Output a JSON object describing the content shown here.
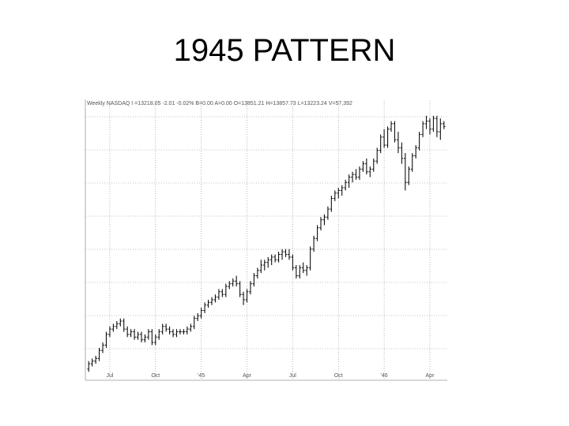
{
  "slide": {
    "title": "1945 PATTERN"
  },
  "chart_data": {
    "type": "ohlc",
    "header": "Weekly NASDAQ I =13218.05 -2.01 -0.02% B=0.00 A=0.00 O=13851.21 H=13857.73 L=13223.24 V=57,392",
    "title": "",
    "xlabel": "",
    "ylabel": "",
    "x_ticks": [
      "Jul",
      "Oct",
      "'45",
      "Apr",
      "Jul",
      "Oct",
      "'46",
      "Apr"
    ],
    "x_tick_weeks": [
      6,
      19,
      32,
      45,
      58,
      71,
      84,
      97
    ],
    "ylim": [
      0,
      100
    ],
    "grid": true,
    "bars": [
      {
        "o": 3,
        "h": 6,
        "l": 2,
        "c": 5
      },
      {
        "o": 5,
        "h": 7,
        "l": 4,
        "c": 6
      },
      {
        "o": 6,
        "h": 8,
        "l": 5,
        "c": 7
      },
      {
        "o": 7,
        "h": 11,
        "l": 6,
        "c": 10
      },
      {
        "o": 10,
        "h": 13,
        "l": 9,
        "c": 12
      },
      {
        "o": 12,
        "h": 17,
        "l": 11,
        "c": 16
      },
      {
        "o": 16,
        "h": 19,
        "l": 15,
        "c": 18
      },
      {
        "o": 18,
        "h": 20,
        "l": 17,
        "c": 19
      },
      {
        "o": 19,
        "h": 21,
        "l": 18,
        "c": 20
      },
      {
        "o": 20,
        "h": 22,
        "l": 19,
        "c": 21
      },
      {
        "o": 21,
        "h": 22,
        "l": 17,
        "c": 18
      },
      {
        "o": 18,
        "h": 19,
        "l": 15,
        "c": 16
      },
      {
        "o": 16,
        "h": 18,
        "l": 15,
        "c": 17
      },
      {
        "o": 17,
        "h": 18,
        "l": 14,
        "c": 15
      },
      {
        "o": 15,
        "h": 17,
        "l": 14,
        "c": 16
      },
      {
        "o": 16,
        "h": 17,
        "l": 13,
        "c": 14
      },
      {
        "o": 14,
        "h": 16,
        "l": 13,
        "c": 15
      },
      {
        "o": 15,
        "h": 18,
        "l": 14,
        "c": 17
      },
      {
        "o": 17,
        "h": 18,
        "l": 12,
        "c": 13
      },
      {
        "o": 13,
        "h": 16,
        "l": 12,
        "c": 15
      },
      {
        "o": 15,
        "h": 18,
        "l": 14,
        "c": 17
      },
      {
        "o": 17,
        "h": 20,
        "l": 16,
        "c": 19
      },
      {
        "o": 19,
        "h": 20,
        "l": 17,
        "c": 18
      },
      {
        "o": 18,
        "h": 19,
        "l": 16,
        "c": 17
      },
      {
        "o": 17,
        "h": 18,
        "l": 15,
        "c": 16
      },
      {
        "o": 16,
        "h": 18,
        "l": 15,
        "c": 17
      },
      {
        "o": 17,
        "h": 18,
        "l": 16,
        "c": 17
      },
      {
        "o": 17,
        "h": 18,
        "l": 16,
        "c": 17
      },
      {
        "o": 17,
        "h": 19,
        "l": 16,
        "c": 18
      },
      {
        "o": 18,
        "h": 20,
        "l": 17,
        "c": 19
      },
      {
        "o": 19,
        "h": 23,
        "l": 18,
        "c": 22
      },
      {
        "o": 22,
        "h": 24,
        "l": 21,
        "c": 23
      },
      {
        "o": 23,
        "h": 26,
        "l": 22,
        "c": 25
      },
      {
        "o": 25,
        "h": 28,
        "l": 24,
        "c": 27
      },
      {
        "o": 27,
        "h": 29,
        "l": 26,
        "c": 28
      },
      {
        "o": 28,
        "h": 30,
        "l": 27,
        "c": 29
      },
      {
        "o": 29,
        "h": 31,
        "l": 28,
        "c": 30
      },
      {
        "o": 30,
        "h": 33,
        "l": 29,
        "c": 32
      },
      {
        "o": 32,
        "h": 33,
        "l": 30,
        "c": 31
      },
      {
        "o": 31,
        "h": 35,
        "l": 30,
        "c": 34
      },
      {
        "o": 34,
        "h": 36,
        "l": 33,
        "c": 35
      },
      {
        "o": 35,
        "h": 37,
        "l": 34,
        "c": 36
      },
      {
        "o": 36,
        "h": 38,
        "l": 34,
        "c": 35
      },
      {
        "o": 35,
        "h": 36,
        "l": 30,
        "c": 31
      },
      {
        "o": 31,
        "h": 32,
        "l": 27,
        "c": 29
      },
      {
        "o": 29,
        "h": 33,
        "l": 28,
        "c": 32
      },
      {
        "o": 32,
        "h": 36,
        "l": 31,
        "c": 35
      },
      {
        "o": 35,
        "h": 39,
        "l": 34,
        "c": 38
      },
      {
        "o": 38,
        "h": 41,
        "l": 37,
        "c": 40
      },
      {
        "o": 40,
        "h": 44,
        "l": 39,
        "c": 42
      },
      {
        "o": 42,
        "h": 44,
        "l": 40,
        "c": 43
      },
      {
        "o": 43,
        "h": 45,
        "l": 41,
        "c": 44
      },
      {
        "o": 44,
        "h": 46,
        "l": 42,
        "c": 45
      },
      {
        "o": 45,
        "h": 46,
        "l": 43,
        "c": 44
      },
      {
        "o": 44,
        "h": 47,
        "l": 43,
        "c": 46
      },
      {
        "o": 46,
        "h": 48,
        "l": 44,
        "c": 47
      },
      {
        "o": 47,
        "h": 48,
        "l": 45,
        "c": 46
      },
      {
        "o": 46,
        "h": 48,
        "l": 44,
        "c": 45
      },
      {
        "o": 45,
        "h": 46,
        "l": 40,
        "c": 41
      },
      {
        "o": 41,
        "h": 42,
        "l": 37,
        "c": 38
      },
      {
        "o": 38,
        "h": 42,
        "l": 37,
        "c": 41
      },
      {
        "o": 41,
        "h": 43,
        "l": 39,
        "c": 40
      },
      {
        "o": 40,
        "h": 42,
        "l": 38,
        "c": 41
      },
      {
        "o": 41,
        "h": 49,
        "l": 40,
        "c": 48
      },
      {
        "o": 48,
        "h": 53,
        "l": 47,
        "c": 52
      },
      {
        "o": 52,
        "h": 57,
        "l": 51,
        "c": 56
      },
      {
        "o": 56,
        "h": 60,
        "l": 55,
        "c": 59
      },
      {
        "o": 59,
        "h": 61,
        "l": 57,
        "c": 60
      },
      {
        "o": 60,
        "h": 64,
        "l": 59,
        "c": 63
      },
      {
        "o": 63,
        "h": 68,
        "l": 62,
        "c": 67
      },
      {
        "o": 67,
        "h": 70,
        "l": 66,
        "c": 69
      },
      {
        "o": 69,
        "h": 71,
        "l": 67,
        "c": 70
      },
      {
        "o": 70,
        "h": 72,
        "l": 68,
        "c": 71
      },
      {
        "o": 71,
        "h": 74,
        "l": 70,
        "c": 73
      },
      {
        "o": 73,
        "h": 76,
        "l": 71,
        "c": 75
      },
      {
        "o": 75,
        "h": 77,
        "l": 73,
        "c": 76
      },
      {
        "o": 76,
        "h": 78,
        "l": 74,
        "c": 75
      },
      {
        "o": 75,
        "h": 79,
        "l": 74,
        "c": 78
      },
      {
        "o": 78,
        "h": 81,
        "l": 77,
        "c": 80
      },
      {
        "o": 80,
        "h": 82,
        "l": 76,
        "c": 77
      },
      {
        "o": 77,
        "h": 79,
        "l": 75,
        "c": 78
      },
      {
        "o": 78,
        "h": 82,
        "l": 77,
        "c": 81
      },
      {
        "o": 81,
        "h": 86,
        "l": 80,
        "c": 85
      },
      {
        "o": 85,
        "h": 91,
        "l": 84,
        "c": 90
      },
      {
        "o": 90,
        "h": 93,
        "l": 86,
        "c": 87
      },
      {
        "o": 87,
        "h": 94,
        "l": 86,
        "c": 93
      },
      {
        "o": 93,
        "h": 96,
        "l": 92,
        "c": 95
      },
      {
        "o": 95,
        "h": 96,
        "l": 88,
        "c": 89
      },
      {
        "o": 89,
        "h": 92,
        "l": 84,
        "c": 86
      },
      {
        "o": 86,
        "h": 88,
        "l": 80,
        "c": 82
      },
      {
        "o": 82,
        "h": 84,
        "l": 70,
        "c": 73
      },
      {
        "o": 73,
        "h": 79,
        "l": 72,
        "c": 78
      },
      {
        "o": 78,
        "h": 84,
        "l": 77,
        "c": 83
      },
      {
        "o": 83,
        "h": 87,
        "l": 82,
        "c": 86
      },
      {
        "o": 86,
        "h": 92,
        "l": 85,
        "c": 91
      },
      {
        "o": 91,
        "h": 96,
        "l": 90,
        "c": 95
      },
      {
        "o": 95,
        "h": 98,
        "l": 93,
        "c": 96
      },
      {
        "o": 96,
        "h": 97,
        "l": 91,
        "c": 93
      },
      {
        "o": 93,
        "h": 98,
        "l": 92,
        "c": 97
      },
      {
        "o": 97,
        "h": 98,
        "l": 90,
        "c": 92
      },
      {
        "o": 92,
        "h": 97,
        "l": 89,
        "c": 95
      },
      {
        "o": 95,
        "h": 96,
        "l": 93,
        "c": 94
      }
    ]
  }
}
